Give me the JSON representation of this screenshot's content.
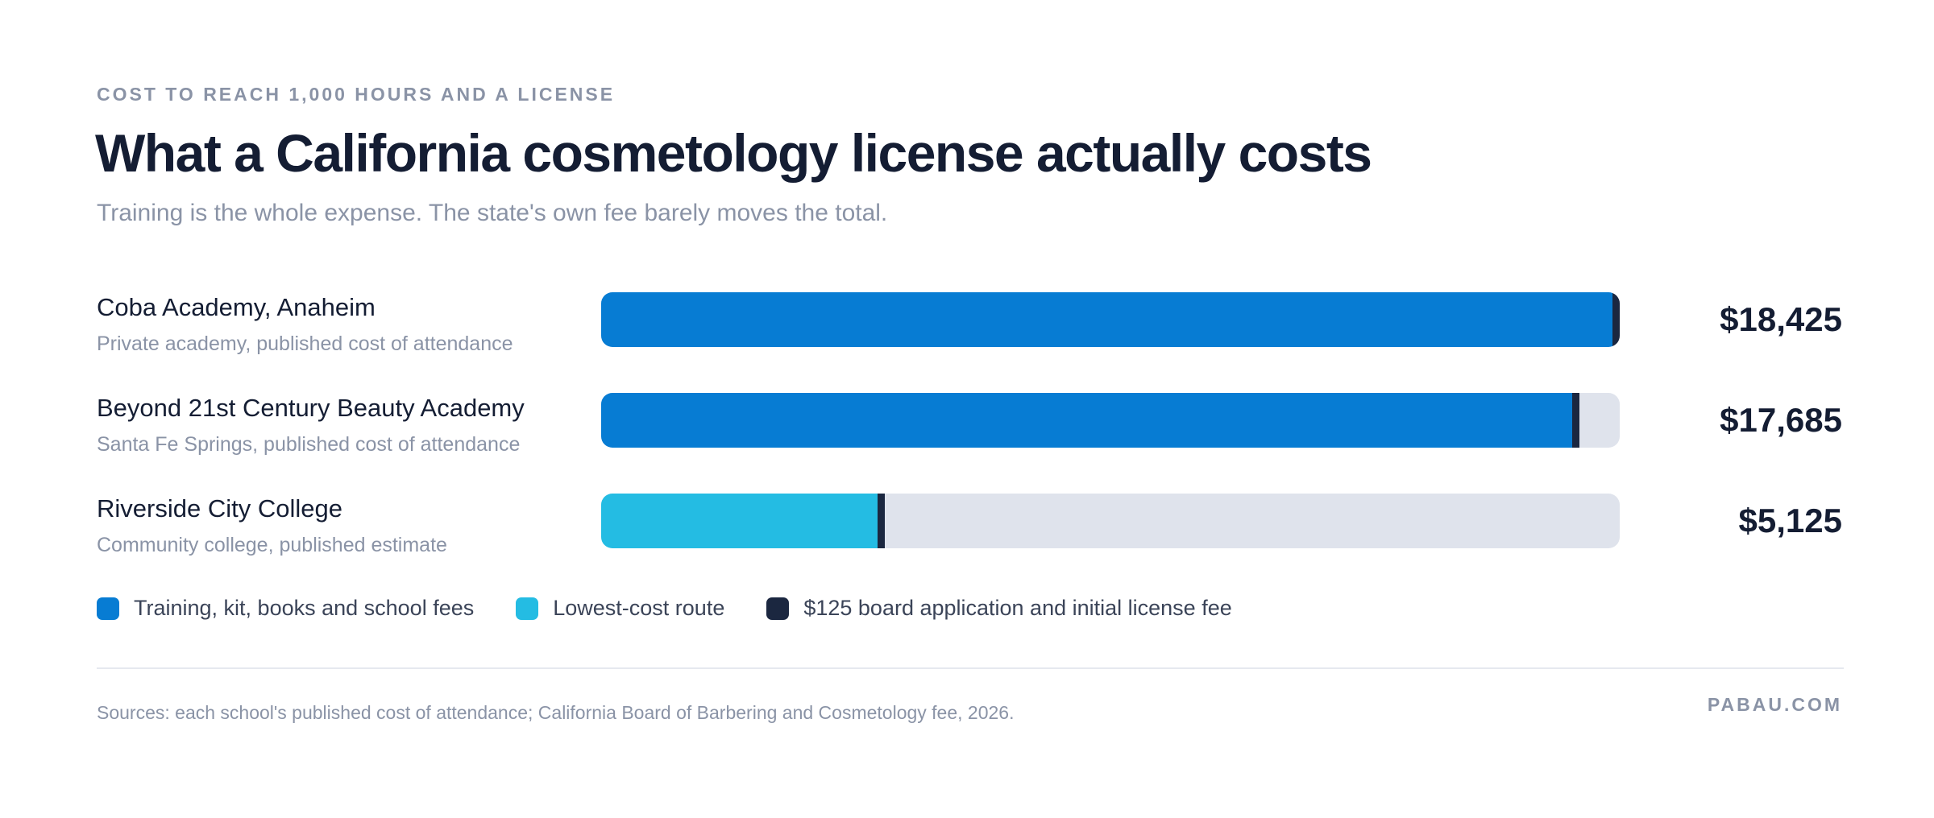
{
  "eyebrow": "COST TO REACH 1,000 HOURS AND A LICENSE",
  "title": "What a California cosmetology license actually costs",
  "subtitle": "Training is the whole expense. The state's own fee barely moves the total.",
  "colors": {
    "training": "#077cd3",
    "lowest_cost": "#24bce3",
    "license_fee": "#1b2740",
    "track": "#dfe3ec"
  },
  "chart_data": {
    "type": "bar",
    "orientation": "horizontal",
    "stacked": true,
    "xlim": [
      0,
      18425
    ],
    "categories": [
      "Coba Academy, Anaheim",
      "Beyond 21st Century Beauty Academy",
      "Riverside City College"
    ],
    "category_descriptions": [
      "Private academy, published cost of attendance",
      "Santa Fe Springs, published cost of attendance",
      "Community college, published estimate"
    ],
    "rows": [
      {
        "name": "Coba Academy, Anaheim",
        "description": "Private academy, published cost of attendance",
        "total": 18425,
        "total_label": "$18,425",
        "segments": [
          {
            "series": "training",
            "value": 18300
          },
          {
            "series": "license_fee",
            "value": 125
          }
        ]
      },
      {
        "name": "Beyond 21st Century Beauty Academy",
        "description": "Santa Fe Springs, published cost of attendance",
        "total": 17685,
        "total_label": "$17,685",
        "segments": [
          {
            "series": "training",
            "value": 17560
          },
          {
            "series": "license_fee",
            "value": 125
          }
        ]
      },
      {
        "name": "Riverside City College",
        "description": "Community college, published estimate",
        "total": 5125,
        "total_label": "$5,125",
        "segments": [
          {
            "series": "lowest_cost",
            "value": 5000
          },
          {
            "series": "license_fee",
            "value": 125
          }
        ]
      }
    ],
    "series": [
      {
        "key": "training",
        "name": "Training, kit, books and school fees"
      },
      {
        "key": "lowest_cost",
        "name": "Lowest-cost route"
      },
      {
        "key": "license_fee",
        "name": "$125 board application and initial license fee"
      }
    ],
    "legend_position": "bottom-left",
    "grid": false
  },
  "footer": {
    "sources": "Sources: each school's published cost of attendance; California Board of Barbering and Cosmetology fee, 2026.",
    "brand": "PABAU.COM"
  }
}
